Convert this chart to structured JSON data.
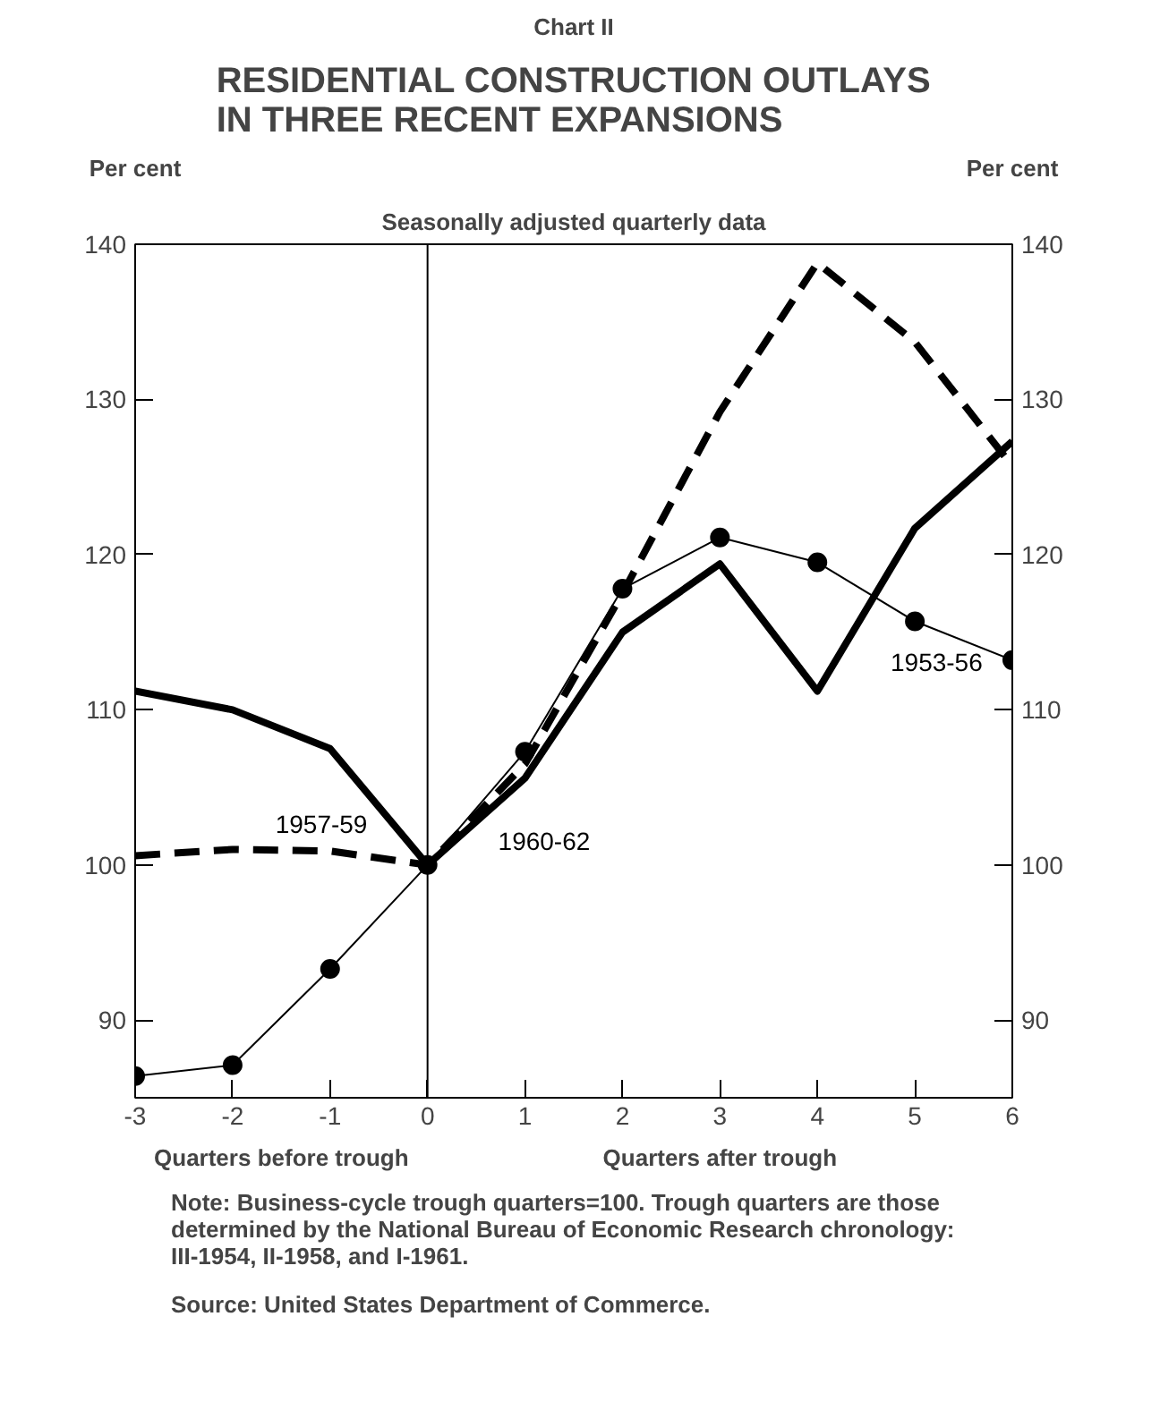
{
  "chart_data": {
    "type": "line",
    "title": "RESIDENTIAL CONSTRUCTION OUTLAYS\nIN THREE RECENT EXPANSIONS",
    "subtitle": "Seasonally adjusted quarterly data",
    "ylabel": "Per cent",
    "y2label": "Per cent",
    "x": [
      -3,
      -2,
      -1,
      0,
      1,
      2,
      3,
      4,
      5,
      6
    ],
    "xlim": [
      -3,
      6
    ],
    "xticks": [
      -3,
      -2,
      -1,
      0,
      1,
      2,
      3,
      4,
      5,
      6
    ],
    "ylim": [
      85,
      140
    ],
    "yticks": [
      90,
      100,
      110,
      120,
      130,
      140
    ],
    "y2lim": [
      85,
      140
    ],
    "y2ticks": [
      90,
      100,
      110,
      120,
      130,
      140
    ],
    "grid": false,
    "legend": false,
    "ref_lines": [
      {
        "axis": "x",
        "value": 0,
        "color": "#000000"
      }
    ],
    "series": [
      {
        "name": "1953-56",
        "color": "#000000",
        "marker": "circle",
        "line_style": "solid",
        "values": [
          86.4,
          87.1,
          93.3,
          100,
          107.3,
          117.8,
          121.1,
          119.5,
          115.7,
          113.2
        ]
      },
      {
        "name": "1957-59",
        "color": "#000000",
        "marker": "none",
        "line_style": "dashed",
        "values": [
          100.6,
          101.0,
          100.9,
          100,
          106.5,
          117.5,
          129.2,
          138.8,
          133.7,
          125.7
        ]
      },
      {
        "name": "1960-62",
        "color": "#000000",
        "marker": "none",
        "line_style": "solid",
        "values": [
          111.2,
          110.0,
          107.5,
          100,
          105.6,
          115.0,
          119.4,
          111.2,
          121.7,
          127.3
        ]
      }
    ],
    "annotations": [
      "Chart II",
      "Quarters before trough",
      "Quarters after trough",
      "Note:  Business-cycle trough quarters=100. Trough quarters are those\n    determined by the National Bureau of Economic Research chronology:\n    III-1954, II-1958, and I-1961.",
      "Source:  United States Department of Commerce."
    ]
  }
}
